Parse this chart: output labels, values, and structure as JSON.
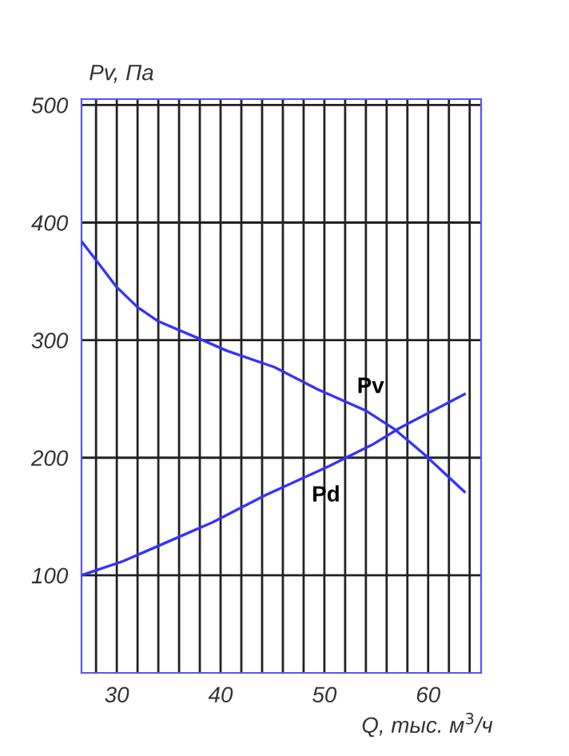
{
  "chart_data": {
    "type": "line",
    "xlabel": "Q, тыс. м$^{3}$/ч",
    "ylabel": "Pv, Па",
    "xlim": [
      26.6,
      65.1
    ],
    "ylim": [
      17,
      505
    ],
    "xticks": [
      {
        "value": 28,
        "label": null
      },
      30,
      {
        "value": 32,
        "label": null
      },
      {
        "value": 34,
        "label": null
      },
      {
        "value": 36,
        "label": null
      },
      {
        "value": 38,
        "label": null
      },
      40,
      {
        "value": 42,
        "label": null
      },
      {
        "value": 44,
        "label": null
      },
      {
        "value": 46,
        "label": null
      },
      {
        "value": 48,
        "label": null
      },
      50,
      {
        "value": 52,
        "label": null
      },
      {
        "value": 54,
        "label": null
      },
      {
        "value": 56,
        "label": null
      },
      {
        "value": 58,
        "label": null
      },
      60,
      {
        "value": 62,
        "label": null
      },
      {
        "value": 64,
        "label": null
      }
    ],
    "yticks": [
      100,
      200,
      300,
      400,
      500
    ],
    "grid": true,
    "marker": "none",
    "line_style": "solid",
    "series": [
      {
        "name": "Pv",
        "color": "#3333ff",
        "x": [
          26.6,
          28,
          30,
          32,
          34,
          38,
          40.6,
          45.2,
          49.4,
          54,
          56.8,
          59.6,
          63.5
        ],
        "values": [
          384,
          368,
          345,
          328,
          316,
          301,
          291,
          277,
          258,
          240,
          224,
          203,
          171
        ]
      },
      {
        "name": "Pd",
        "color": "#3333ff",
        "x": [
          26.6,
          30.6,
          34,
          39.2,
          44.3,
          50.5,
          54.6,
          57.2,
          63.5
        ],
        "values": [
          100,
          112,
          125,
          145,
          168,
          193,
          211,
          225,
          254
        ]
      }
    ]
  }
}
